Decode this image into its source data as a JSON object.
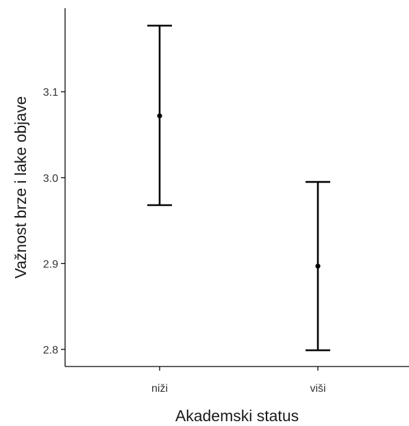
{
  "chart_data": {
    "type": "scatter",
    "subtype": "point-with-error-bars",
    "title": "",
    "xlabel": "Akademski status",
    "ylabel": "Važnost brze i lake objave",
    "categories": [
      "niži",
      "viši"
    ],
    "series": [
      {
        "points": [
          {
            "x": "niži",
            "y": 3.072,
            "ymin": 2.968,
            "ymax": 3.177
          },
          {
            "x": "viši",
            "y": 2.897,
            "ymin": 2.799,
            "ymax": 2.995
          }
        ]
      }
    ],
    "y_ticks": [
      2.8,
      2.9,
      3.0,
      3.1
    ],
    "y_tick_labels": [
      "2.8",
      "2.9",
      "3.0",
      "3.1"
    ],
    "ylim": [
      2.78,
      3.195
    ],
    "grid": false,
    "legend": "none",
    "colors": {
      "mark": "#000000",
      "axis": "#000000",
      "text": "#333333"
    }
  }
}
